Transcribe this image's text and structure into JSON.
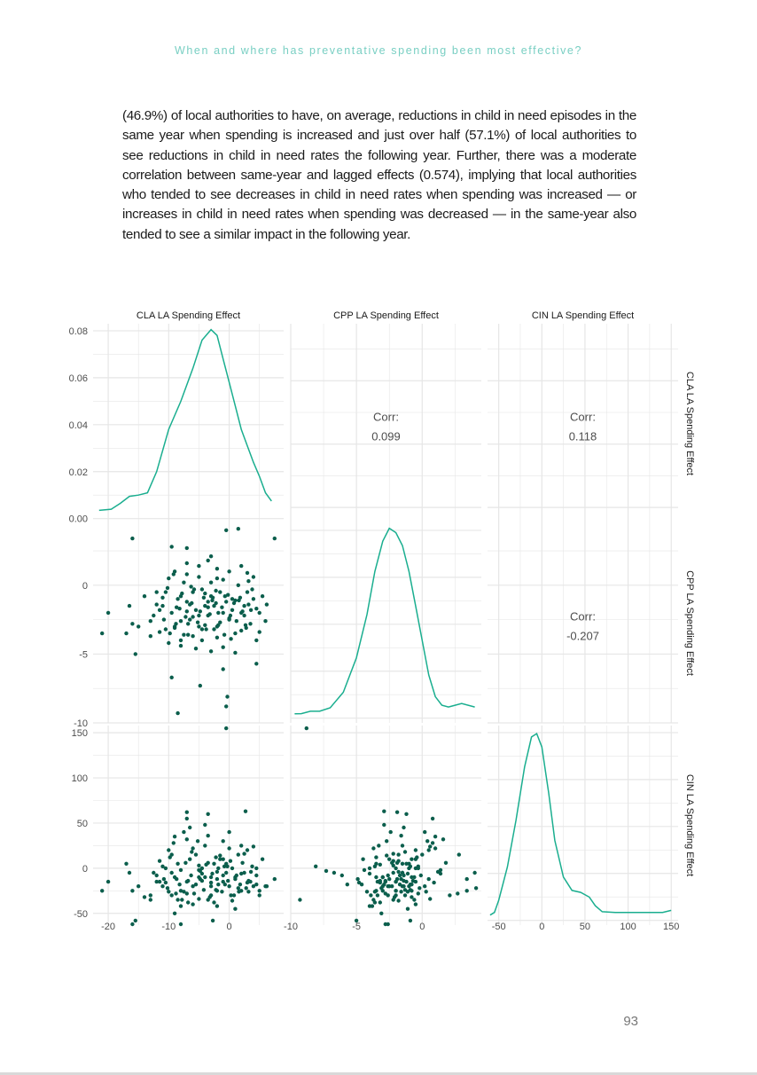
{
  "header": {
    "running_title": "When and where has preventative spending been most effective?"
  },
  "body": {
    "paragraph": "(46.9%) of local authorities to have, on average, reductions in child in need episodes in the same year when spending is increased and just over half (57.1%) of local authorities to see reductions in child in need rates the following year. Further, there was a moderate correlation between same-year and lagged effects (0.574), implying that local authorities who tended to see decreases in child in need rates when spending was increased — or increases in child in need rates when spending was decreased — in the same-year also tended to see a similar impact in the following year."
  },
  "footer": {
    "page_number": "93"
  },
  "colors": {
    "density": "#1aae8f",
    "points": "#0b5e4c",
    "grid": "#e6e6e6",
    "panel_bg": "#ffffff",
    "axis_text": "#4d4d4d",
    "strip_text": "#1a1a1a"
  },
  "chart_data": {
    "type": "scatter",
    "subtype": "pairs-matrix",
    "variables": [
      "CLA LA Spending Effect",
      "CPP LA Spending Effect",
      "CIN LA Spending Effect"
    ],
    "grid": true,
    "ranges": {
      "CLA": [
        -22.5,
        9
      ],
      "CPP": [
        -10,
        4.5
      ],
      "CIN": [
        -63,
        158
      ]
    },
    "ticks": {
      "CLA": {
        "values": [
          -20,
          -10,
          0
        ],
        "labels": [
          "-20",
          "-10",
          "0"
        ]
      },
      "CPP": {
        "values": [
          -10,
          -5,
          0
        ],
        "labels": [
          "-10",
          "-5",
          "0"
        ]
      },
      "CIN": {
        "values": [
          -50,
          0,
          50,
          100,
          150
        ],
        "labels": [
          "-50",
          "0",
          "50",
          "100",
          "150"
        ]
      },
      "density": {
        "range": [
          -0.002,
          0.083
        ],
        "values": [
          0,
          0.02,
          0.04,
          0.06,
          0.08
        ],
        "labels": [
          "0.00",
          "0.02",
          "0.04",
          "0.06",
          "0.08"
        ]
      }
    },
    "correlations": [
      {
        "pair": [
          "CLA LA Spending Effect",
          "CPP LA Spending Effect"
        ],
        "label": "Corr:",
        "value": "0.099"
      },
      {
        "pair": [
          "CLA LA Spending Effect",
          "CIN LA Spending Effect"
        ],
        "label": "Corr:",
        "value": "0.118"
      },
      {
        "pair": [
          "CPP LA Spending Effect",
          "CIN LA Spending Effect"
        ],
        "label": "Corr:",
        "value": "-0.207"
      }
    ],
    "densities": {
      "CLA": [
        [
          -21.5,
          0.0035
        ],
        [
          -19.5,
          0.004
        ],
        [
          -18,
          0.0065
        ],
        [
          -16.5,
          0.0095
        ],
        [
          -15,
          0.01
        ],
        [
          -13.5,
          0.011
        ],
        [
          -12,
          0.02
        ],
        [
          -10,
          0.038
        ],
        [
          -8,
          0.05
        ],
        [
          -6,
          0.064
        ],
        [
          -4.5,
          0.076
        ],
        [
          -3,
          0.0805
        ],
        [
          -2,
          0.078
        ],
        [
          -1,
          0.068
        ],
        [
          0,
          0.058
        ],
        [
          1,
          0.048
        ],
        [
          2,
          0.038
        ],
        [
          3,
          0.031
        ],
        [
          4,
          0.024
        ],
        [
          5,
          0.018
        ],
        [
          6,
          0.011
        ],
        [
          7,
          0.0075
        ]
      ],
      "CPP": [
        [
          -9.7,
          0.005
        ],
        [
          -9.2,
          0.0052
        ],
        [
          -8.5,
          0.008
        ],
        [
          -7.8,
          0.008
        ],
        [
          -7,
          0.012
        ],
        [
          -6,
          0.03
        ],
        [
          -5,
          0.07
        ],
        [
          -4.2,
          0.12
        ],
        [
          -3.6,
          0.17
        ],
        [
          -3,
          0.205
        ],
        [
          -2.5,
          0.22
        ],
        [
          -2,
          0.215
        ],
        [
          -1.5,
          0.2
        ],
        [
          -1,
          0.17
        ],
        [
          -0.5,
          0.13
        ],
        [
          0,
          0.09
        ],
        [
          0.5,
          0.05
        ],
        [
          1,
          0.025
        ],
        [
          1.5,
          0.015
        ],
        [
          2,
          0.013
        ],
        [
          3,
          0.017
        ],
        [
          4,
          0.013
        ]
      ],
      "CIN": [
        [
          -60,
          0.0008
        ],
        [
          -55,
          0.0012
        ],
        [
          -50,
          0.003
        ],
        [
          -40,
          0.008
        ],
        [
          -30,
          0.015
        ],
        [
          -20,
          0.023
        ],
        [
          -12,
          0.0275
        ],
        [
          -6,
          0.028
        ],
        [
          0,
          0.026
        ],
        [
          8,
          0.019
        ],
        [
          15,
          0.012
        ],
        [
          25,
          0.0065
        ],
        [
          35,
          0.0045
        ],
        [
          45,
          0.0042
        ],
        [
          55,
          0.0035
        ],
        [
          62,
          0.0022
        ],
        [
          70,
          0.0013
        ],
        [
          85,
          0.0012
        ],
        [
          100,
          0.0012
        ],
        [
          120,
          0.0012
        ],
        [
          140,
          0.0012
        ],
        [
          150,
          0.0015
        ]
      ]
    },
    "points": [
      [
        -21,
        -3.5,
        -25
      ],
      [
        -20,
        -2,
        -15
      ],
      [
        -17,
        -3.5,
        5
      ],
      [
        -16.5,
        -1.5,
        -5
      ],
      [
        -16,
        -2.8,
        -62
      ],
      [
        -15.5,
        -5,
        -58
      ],
      [
        -15,
        -3,
        -20
      ],
      [
        -14,
        -0.8,
        -32
      ],
      [
        -13,
        -3.7,
        -35
      ],
      [
        -12,
        -0.5,
        -15
      ],
      [
        -11,
        -1.5,
        -20
      ],
      [
        -10.5,
        -0.5,
        0
      ],
      [
        -10,
        0.5,
        20
      ],
      [
        -9.5,
        -2,
        -30
      ],
      [
        -9,
        -3,
        -10
      ],
      [
        -8.5,
        -1,
        5
      ],
      [
        -8,
        -0.8,
        -25
      ],
      [
        -7.5,
        0.2,
        40
      ],
      [
        -7,
        -1.2,
        -15
      ],
      [
        -6.5,
        -2.5,
        10
      ],
      [
        -6,
        -0.5,
        -40
      ],
      [
        -5.5,
        -1.8,
        15
      ],
      [
        -5,
        -3,
        -10
      ],
      [
        -4.5,
        -0.3,
        0
      ],
      [
        -4,
        -1.5,
        25
      ],
      [
        -3.5,
        -2.2,
        -35
      ],
      [
        -3,
        -0.8,
        -10
      ],
      [
        -2.5,
        -1.5,
        5
      ],
      [
        -2,
        -3,
        -25
      ],
      [
        -1.5,
        -0.5,
        10
      ],
      [
        -1,
        -2,
        -15
      ],
      [
        -0.5,
        -1.2,
        5
      ],
      [
        0,
        -2.5,
        -20
      ],
      [
        0.5,
        -1,
        0
      ],
      [
        1,
        -3.5,
        -10
      ],
      [
        1.5,
        0,
        15
      ],
      [
        2,
        -2,
        -25
      ],
      [
        2.5,
        -1.5,
        -5
      ],
      [
        3,
        -0.5,
        20
      ],
      [
        3.5,
        -2.8,
        -15
      ],
      [
        4,
        -1,
        -20
      ],
      [
        4.5,
        -4,
        0
      ],
      [
        5,
        -2,
        -25
      ],
      [
        5.5,
        -0.8,
        10
      ],
      [
        -12.5,
        -2.2,
        -5
      ],
      [
        -11.5,
        -1.8,
        8
      ],
      [
        -10.8,
        -2.5,
        -12
      ],
      [
        -10.2,
        -0.2,
        -22
      ],
      [
        -9.8,
        -3.5,
        12
      ],
      [
        -9.2,
        0.8,
        28
      ],
      [
        -8.8,
        -2.8,
        -28
      ],
      [
        -8.2,
        -1.7,
        -18
      ],
      [
        -7.8,
        -0.6,
        -35
      ],
      [
        -7.2,
        -2.3,
        6
      ],
      [
        -6.8,
        -3.6,
        -38
      ],
      [
        -6.2,
        -1.3,
        18
      ],
      [
        -5.8,
        -0.3,
        -28
      ],
      [
        -5.2,
        -2.7,
        30
      ],
      [
        -4.8,
        -1.9,
        -12
      ],
      [
        -4.2,
        -0.9,
        -24
      ],
      [
        -3.8,
        -3.2,
        4
      ],
      [
        -3.2,
        -2.1,
        -32
      ],
      [
        -2.8,
        -1.1,
        -6
      ],
      [
        -2.2,
        -0.4,
        12
      ],
      [
        -1.8,
        -2.9,
        -18
      ],
      [
        -1.2,
        -1.6,
        -26
      ],
      [
        -0.8,
        -3.6,
        2
      ],
      [
        -0.2,
        -0.7,
        -14
      ],
      [
        0.2,
        -2.2,
        8
      ],
      [
        0.8,
        -1.3,
        -30
      ],
      [
        1.2,
        -2.6,
        -8
      ],
      [
        1.8,
        -0.9,
        -18
      ],
      [
        2.2,
        -1.9,
        6
      ],
      [
        2.8,
        -3.1,
        -22
      ],
      [
        3.2,
        -1.4,
        -14
      ],
      [
        3.8,
        -0.3,
        2
      ],
      [
        -9,
        1,
        35
      ],
      [
        -8,
        -4,
        -42
      ],
      [
        -7,
        0.8,
        55
      ],
      [
        -6,
        -3.7,
        22
      ],
      [
        -5,
        0.6,
        -34
      ],
      [
        -4,
        -2.9,
        48
      ],
      [
        -3,
        0.2,
        -20
      ],
      [
        -2,
        -3.8,
        -42
      ],
      [
        -1,
        0.4,
        30
      ],
      [
        0,
        -2.4,
        40
      ],
      [
        1,
        -1.1,
        -45
      ],
      [
        2,
        -3.3,
        25
      ],
      [
        -6.5,
        -1.4,
        45
      ],
      [
        -3.5,
        -1.6,
        36
      ],
      [
        -1.5,
        -2.7,
        14
      ],
      [
        0.5,
        -1.8,
        -36
      ],
      [
        2.5,
        -2.2,
        16
      ],
      [
        4.5,
        -1.7,
        -8
      ],
      [
        -11,
        -0.9,
        2
      ],
      [
        -12,
        -1.4,
        -8
      ],
      [
        -13,
        -2.6,
        -30
      ],
      [
        -10,
        -4.2,
        -26
      ],
      [
        -8,
        -4.4,
        -2
      ],
      [
        -5.5,
        -4.6,
        -18
      ],
      [
        -4.5,
        -4,
        -6
      ],
      [
        -3,
        -4.8,
        -16
      ],
      [
        -1,
        -4.5,
        10
      ],
      [
        1,
        -4.9,
        -12
      ],
      [
        -7,
        1.6,
        32
      ],
      [
        -5,
        1.4,
        -2
      ],
      [
        -3.5,
        1.8,
        6
      ],
      [
        -2,
        1.2,
        -4
      ],
      [
        0,
        1,
        22
      ],
      [
        2,
        1.4,
        -6
      ],
      [
        3,
        0.9,
        -16
      ],
      [
        4,
        0.6,
        24
      ],
      [
        -9.5,
        -6.7,
        -5
      ],
      [
        -4.8,
        -7.3,
        -3
      ],
      [
        -0.3,
        -8.1,
        2
      ],
      [
        -8.5,
        -9.3,
        -35
      ],
      [
        -16,
        3.4,
        -25
      ],
      [
        -9.5,
        2.8,
        15
      ],
      [
        -7,
        2.7,
        -28
      ],
      [
        -0.5,
        4.0,
        -5
      ],
      [
        1.5,
        4.1,
        -22
      ],
      [
        7.5,
        3.4,
        -12
      ],
      [
        -3,
        2.1,
        -30
      ],
      [
        4.5,
        -5.7,
        -18
      ],
      [
        -1,
        -6.1,
        -8
      ],
      [
        -3.5,
        -1.2,
        60
      ],
      [
        -7,
        -1.9,
        62
      ],
      [
        -2.7,
        -0.9,
        -58
      ],
      [
        -8,
        -2.6,
        -62
      ],
      [
        2.7,
        -2.9,
        63
      ],
      [
        -0.5,
        -8.8,
        155
      ],
      [
        -2.5,
        -3.2,
        -38
      ],
      [
        -6,
        -2.3,
        -20
      ],
      [
        -4,
        -0.6,
        -10
      ],
      [
        -1.8,
        -2.0,
        0
      ],
      [
        1.6,
        -1.1,
        -26
      ],
      [
        3.6,
        -1.8,
        -4
      ],
      [
        -0.7,
        -0.8,
        -18
      ],
      [
        -2.2,
        -1.3,
        -24
      ],
      [
        -6.3,
        -0.1,
        -8
      ],
      [
        -8.7,
        -1.6,
        -12
      ],
      [
        -10.5,
        -3.2,
        -16
      ],
      [
        5,
        -3.4,
        -30
      ],
      [
        6,
        -2.6,
        -20
      ],
      [
        6.2,
        -1.4,
        -20
      ],
      [
        -9,
        -3.1,
        -50
      ],
      [
        0.3,
        -3.9,
        -30
      ],
      [
        -2,
        0.5,
        -12
      ],
      [
        3.2,
        0.3,
        -26
      ],
      [
        -4.5,
        -3.2,
        -14
      ],
      [
        -5,
        -2.2,
        3
      ],
      [
        -11.5,
        -3.4,
        -15
      ],
      [
        -7.5,
        -3.6,
        -26
      ],
      [
        -6.8,
        -2.8,
        -14
      ]
    ]
  }
}
